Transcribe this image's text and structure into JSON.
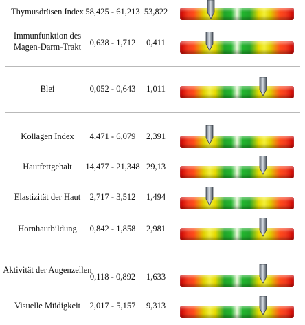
{
  "rows": [
    {
      "name": "Thymusdrüsen Index",
      "range": "58,425 - 61,213",
      "value": "53,822",
      "level": 0.27
    },
    {
      "name": "Immunfunktion des Magen-Darm-Trakt",
      "range": "0,638 - 1,712",
      "value": "0,411",
      "level": 0.26
    },
    {
      "name": "Blei",
      "range": "0,052 - 0,643",
      "value": "1,011",
      "level": 0.73
    },
    {
      "name": "Kollagen Index",
      "range": "4,471 - 6,079",
      "value": "2,391",
      "level": 0.26
    },
    {
      "name": "Hautfettgehalt",
      "range": "14,477 - 21,348",
      "value": "29,13",
      "level": 0.73
    },
    {
      "name": "Elastizität der Haut",
      "range": "2,717 - 3,512",
      "value": "1,494",
      "level": 0.26
    },
    {
      "name": "Hornhautbildung",
      "range": "0,842 - 1,858",
      "value": "2,981",
      "level": 0.73
    },
    {
      "name": "Aktivität der Augenzellen",
      "range": "0,118 - 0,892",
      "value": "1,633",
      "level": 0.73
    },
    {
      "name": "Visuelle Müdigkeit",
      "range": "2,017 - 5,157",
      "value": "9,313",
      "level": 0.73
    }
  ],
  "colors": {
    "red": "#c90000",
    "yellow": "#e6da00",
    "green": "#20a52a",
    "separator": "#b9b9b9"
  },
  "icons": {
    "marker": "down-pointer-icon"
  }
}
